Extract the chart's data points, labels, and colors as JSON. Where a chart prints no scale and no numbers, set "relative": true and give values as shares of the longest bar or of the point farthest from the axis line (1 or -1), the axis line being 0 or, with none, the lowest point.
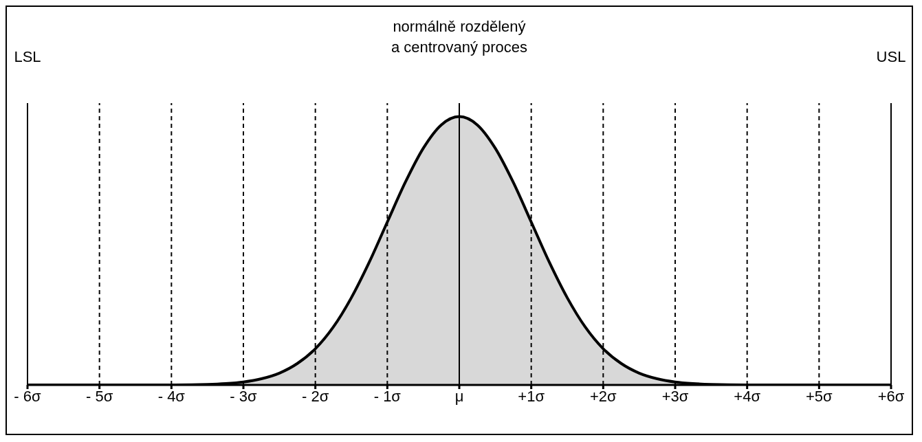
{
  "chart_data": {
    "type": "area",
    "title": "normálně rozdělený\na centrovaný proces",
    "relative": true,
    "legend": false,
    "grid": false,
    "x": [
      -6,
      -5,
      -4,
      -3.5,
      -3.25,
      -3,
      -2.75,
      -2.5,
      -2.25,
      -2,
      -1.75,
      -1.5,
      -1.25,
      -1,
      -0.75,
      -0.5,
      -0.25,
      0,
      0.25,
      0.5,
      0.75,
      1,
      1.25,
      1.5,
      1.75,
      2,
      2.25,
      2.5,
      2.75,
      3,
      3.25,
      3.5,
      4,
      5,
      6
    ],
    "series": [
      {
        "color": "#000000",
        "values": [
          0,
          0,
          0,
          0.002,
          0.005,
          0.011,
          0.023,
          0.044,
          0.08,
          0.135,
          0.216,
          0.325,
          0.458,
          0.607,
          0.755,
          0.882,
          0.969,
          1,
          0.969,
          0.882,
          0.755,
          0.607,
          0.458,
          0.325,
          0.216,
          0.135,
          0.08,
          0.044,
          0.023,
          0.011,
          0.005,
          0.002,
          0,
          0,
          0
        ]
      }
    ],
    "xlim": [
      -6,
      6
    ],
    "xticks": [
      {
        "value": -6,
        "label": "- 6σ"
      },
      {
        "value": -5,
        "label": "- 5σ"
      },
      {
        "value": -4,
        "label": "- 4σ"
      },
      {
        "value": -3,
        "label": "- 3σ"
      },
      {
        "value": -2,
        "label": "- 2σ"
      },
      {
        "value": -1,
        "label": "- 1σ"
      },
      {
        "value": 0,
        "label": "μ"
      },
      {
        "value": 1,
        "label": "+1σ"
      },
      {
        "value": 2,
        "label": "+2σ"
      },
      {
        "value": 3,
        "label": "+3σ"
      },
      {
        "value": 4,
        "label": "+4σ"
      },
      {
        "value": 5,
        "label": "+5σ"
      },
      {
        "value": 6,
        "label": "+6σ"
      }
    ],
    "ref_lines": [
      {
        "axis": "x",
        "value": -6,
        "label": "LSL",
        "line_style": "solid"
      },
      {
        "axis": "x",
        "value": 6,
        "label": "USL",
        "line_style": "solid"
      },
      {
        "axis": "x",
        "value": 0,
        "line_style": "solid"
      },
      {
        "axis": "x",
        "value": -5,
        "line_style": "dashed"
      },
      {
        "axis": "x",
        "value": -4,
        "line_style": "dashed"
      },
      {
        "axis": "x",
        "value": -3,
        "line_style": "dashed"
      },
      {
        "axis": "x",
        "value": -2,
        "line_style": "dashed"
      },
      {
        "axis": "x",
        "value": -1,
        "line_style": "dashed"
      },
      {
        "axis": "x",
        "value": 1,
        "line_style": "dashed"
      },
      {
        "axis": "x",
        "value": 2,
        "line_style": "dashed"
      },
      {
        "axis": "x",
        "value": 3,
        "line_style": "dashed"
      },
      {
        "axis": "x",
        "value": 4,
        "line_style": "dashed"
      },
      {
        "axis": "x",
        "value": 5,
        "line_style": "dashed"
      }
    ]
  }
}
